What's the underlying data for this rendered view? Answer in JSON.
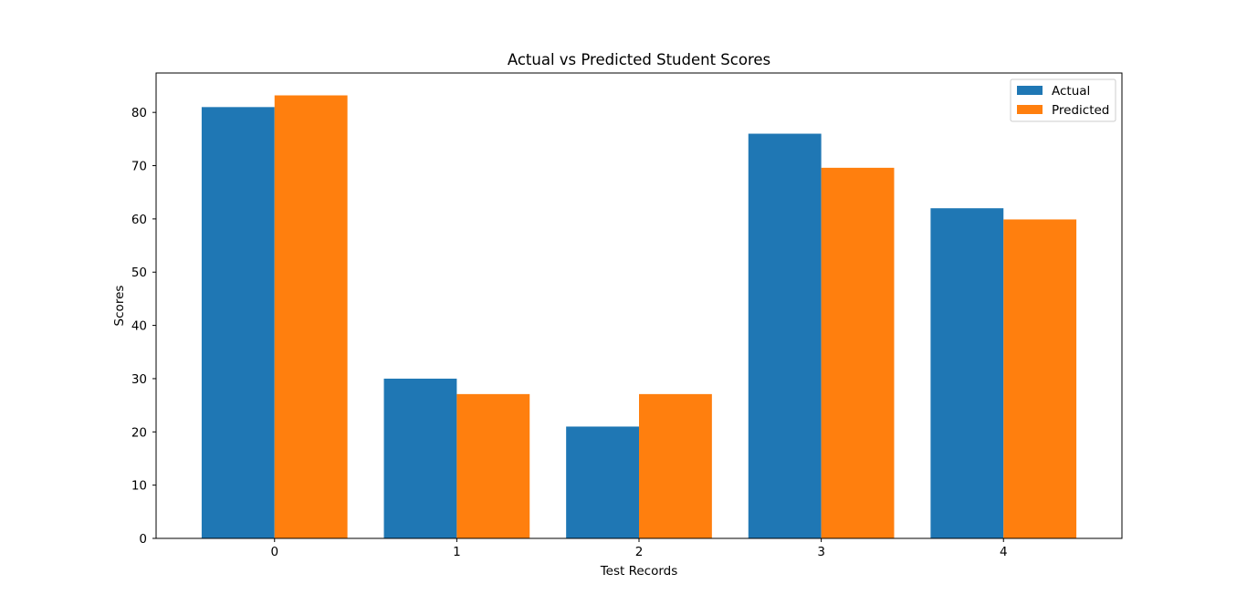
{
  "chart_data": {
    "type": "bar",
    "title": "Actual vs Predicted Student Scores",
    "xlabel": "Test Records",
    "ylabel": "Scores",
    "categories": [
      "0",
      "1",
      "2",
      "3",
      "4"
    ],
    "series": [
      {
        "name": "Actual",
        "color": "#1f77b4",
        "values": [
          81,
          30,
          21,
          76,
          62
        ]
      },
      {
        "name": "Predicted",
        "color": "#ff7f0e",
        "values": [
          83.2,
          27.1,
          27.1,
          69.6,
          59.9
        ]
      }
    ],
    "ylim": [
      0,
      87.4
    ],
    "yticks": [
      0,
      10,
      20,
      30,
      40,
      50,
      60,
      70,
      80
    ],
    "grid": false,
    "legend_position": "top-right"
  }
}
